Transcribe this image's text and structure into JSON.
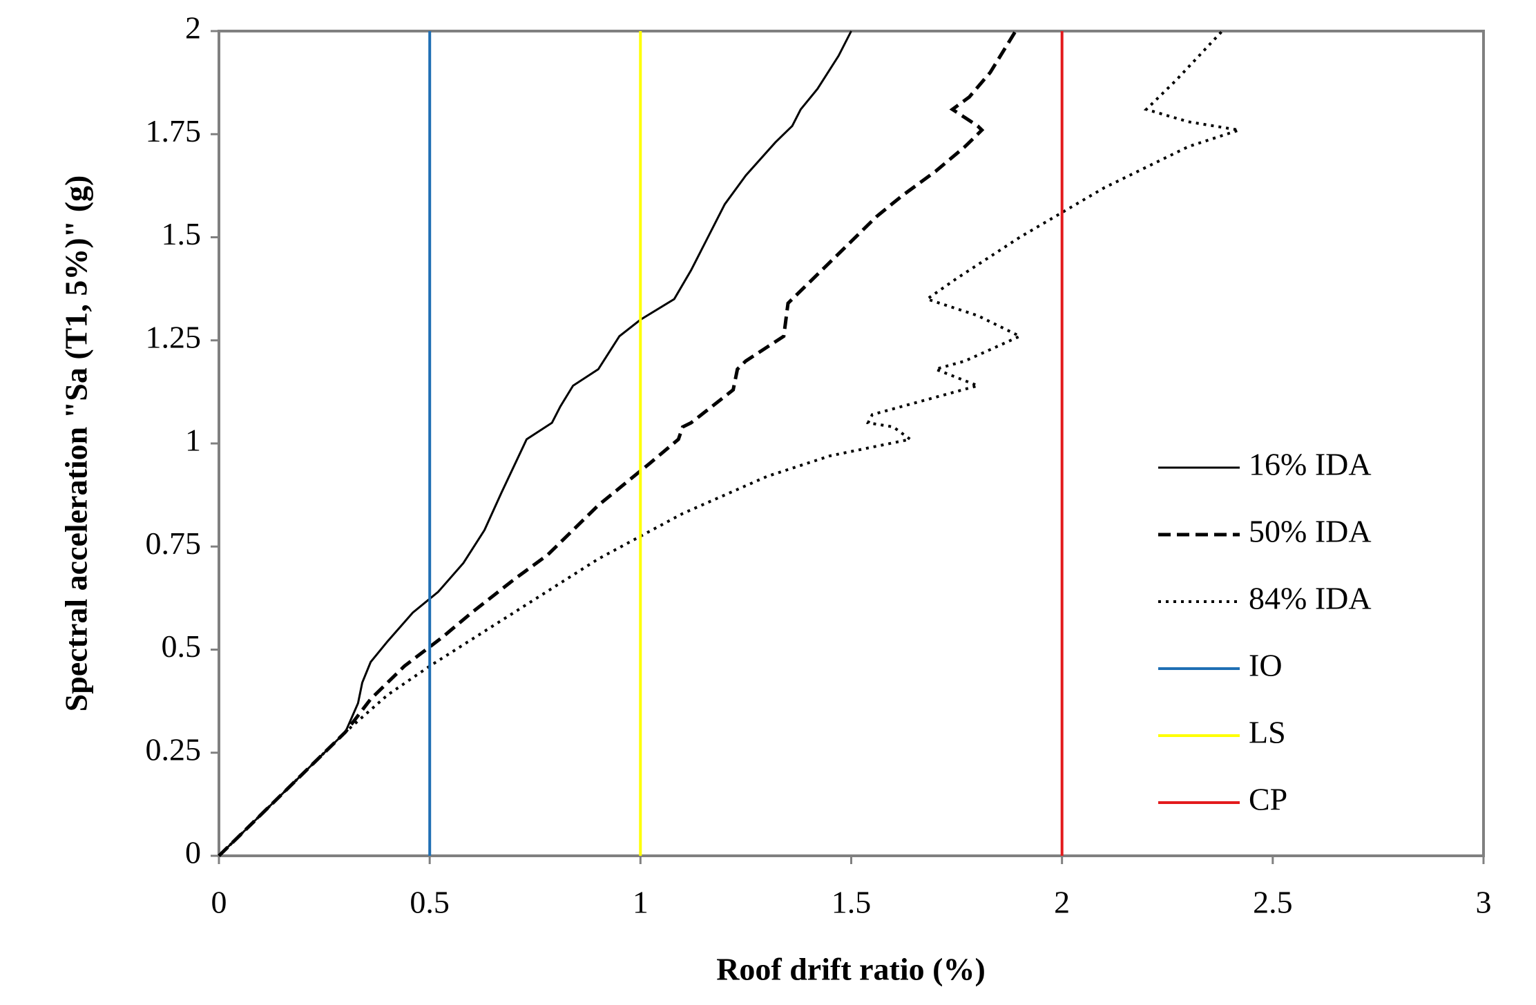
{
  "chart_data": {
    "type": "line",
    "xlabel": "Roof drift ratio (%)",
    "ylabel": "Spectral acceleration  \"Sa (T1, 5%)\"  (g)",
    "xlim": [
      0,
      3
    ],
    "ylim": [
      0,
      2
    ],
    "xticks": [
      0,
      0.5,
      1,
      1.5,
      2,
      2.5,
      3
    ],
    "yticks": [
      0,
      0.25,
      0.5,
      0.75,
      1,
      1.25,
      1.5,
      1.75,
      2
    ],
    "legend": "right",
    "series": [
      {
        "name": "16% IDA",
        "color": "#000000",
        "dash": "solid",
        "x": [
          0,
          0.3,
          0.33,
          0.34,
          0.36,
          0.4,
          0.46,
          0.52,
          0.58,
          0.63,
          0.67,
          0.73,
          0.79,
          0.81,
          0.84,
          0.9,
          0.95,
          1.0,
          1.08,
          1.12,
          1.16,
          1.2,
          1.25,
          1.32,
          1.36,
          1.38,
          1.42,
          1.47,
          1.5
        ],
        "values": [
          0,
          0.3,
          0.37,
          0.42,
          0.47,
          0.52,
          0.59,
          0.64,
          0.71,
          0.79,
          0.88,
          1.01,
          1.05,
          1.09,
          1.14,
          1.18,
          1.26,
          1.3,
          1.35,
          1.42,
          1.5,
          1.58,
          1.65,
          1.73,
          1.77,
          1.81,
          1.86,
          1.94,
          2.0
        ]
      },
      {
        "name": "50% IDA",
        "color": "#000000",
        "dash": "dashed",
        "x": [
          0,
          0.3,
          0.36,
          0.44,
          0.53,
          0.6,
          0.7,
          0.78,
          0.84,
          0.9,
          0.96,
          1.02,
          1.09,
          1.1,
          1.12,
          1.17,
          1.22,
          1.23,
          1.25,
          1.34,
          1.35,
          1.36,
          1.43,
          1.5,
          1.56,
          1.62,
          1.7,
          1.77,
          1.81,
          1.8,
          1.74,
          1.78,
          1.83,
          1.89
        ],
        "values": [
          0,
          0.3,
          0.38,
          0.46,
          0.53,
          0.59,
          0.67,
          0.73,
          0.79,
          0.85,
          0.9,
          0.95,
          1.01,
          1.04,
          1.05,
          1.09,
          1.13,
          1.18,
          1.2,
          1.26,
          1.34,
          1.35,
          1.42,
          1.49,
          1.55,
          1.6,
          1.66,
          1.72,
          1.76,
          1.77,
          1.81,
          1.84,
          1.9,
          2.0
        ]
      },
      {
        "name": "84% IDA",
        "color": "#000000",
        "dash": "dotted",
        "x": [
          0,
          0.3,
          0.4,
          0.5,
          0.7,
          0.9,
          1.1,
          1.3,
          1.45,
          1.64,
          1.6,
          1.54,
          1.55,
          1.8,
          1.7,
          1.77,
          1.9,
          1.8,
          1.68,
          1.75,
          1.9,
          2.1,
          2.3,
          2.42,
          2.3,
          2.2,
          2.27,
          2.38
        ],
        "values": [
          0,
          0.3,
          0.39,
          0.46,
          0.59,
          0.72,
          0.83,
          0.92,
          0.97,
          1.01,
          1.04,
          1.05,
          1.07,
          1.14,
          1.18,
          1.2,
          1.26,
          1.31,
          1.35,
          1.4,
          1.5,
          1.62,
          1.72,
          1.76,
          1.78,
          1.81,
          1.88,
          2.0
        ]
      },
      {
        "name": "IO",
        "color": "#1f6fb4",
        "dash": "solid",
        "x": [
          0.5,
          0.5
        ],
        "values": [
          0,
          2
        ]
      },
      {
        "name": "LS",
        "color": "#ffff00",
        "dash": "solid",
        "x": [
          1,
          1
        ],
        "values": [
          0,
          2
        ]
      },
      {
        "name": "CP",
        "color": "#e31a1c",
        "dash": "solid",
        "x": [
          2,
          2
        ],
        "values": [
          0,
          2
        ]
      }
    ]
  }
}
